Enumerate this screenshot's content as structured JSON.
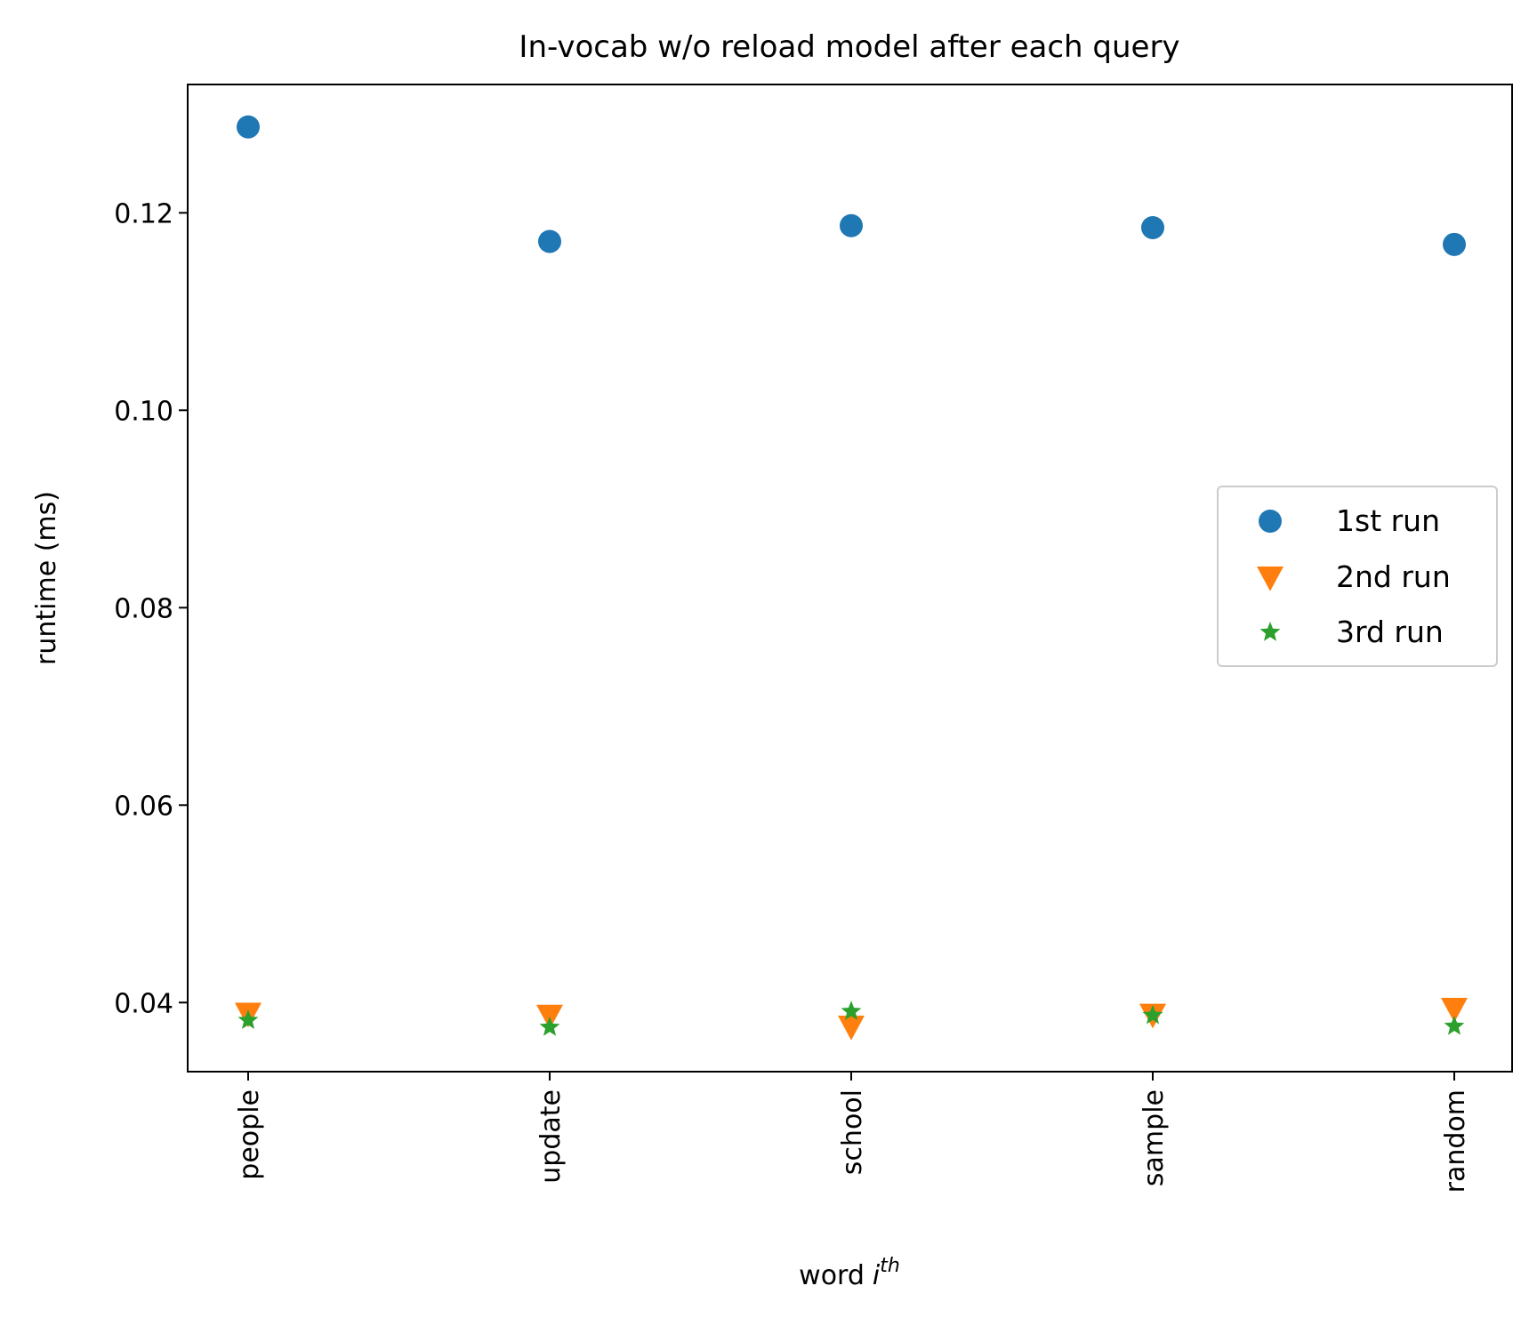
{
  "chart_data": {
    "type": "scatter",
    "title": "In-vocab w/o reload model after each query",
    "xlabel": "word",
    "xlabel_sup": "i",
    "xlabel_sup_exp": "th",
    "ylabel": "runtime (ms)",
    "categories": [
      "people",
      "update",
      "school",
      "sample",
      "random"
    ],
    "ylim": [
      0.033,
      0.133
    ],
    "yticks": [
      0.04,
      0.06,
      0.08,
      0.1,
      0.12
    ],
    "ytick_labels": [
      "0.04",
      "0.06",
      "0.08",
      "0.10",
      "0.12"
    ],
    "grid": false,
    "legend_position": "center-right",
    "series": [
      {
        "name": "1st run",
        "marker": "circle",
        "color": "#1f77b4",
        "values": [
          0.1287,
          0.1171,
          0.1187,
          0.1185,
          0.1168
        ]
      },
      {
        "name": "2nd run",
        "marker": "triangle-down",
        "color": "#ff7f0e",
        "values": [
          0.0389,
          0.0387,
          0.0376,
          0.0388,
          0.0394
        ]
      },
      {
        "name": "3rd run",
        "marker": "star",
        "color": "#2ca02c",
        "values": [
          0.0382,
          0.0375,
          0.0391,
          0.0387,
          0.0376
        ]
      }
    ]
  }
}
